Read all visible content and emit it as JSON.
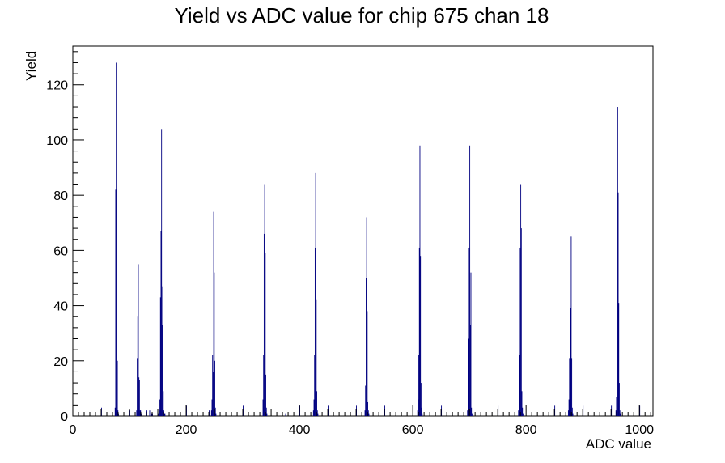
{
  "chart_data": {
    "type": "bar",
    "title": "Yield vs ADC value for chip 675 chan 18",
    "xlabel": "ADC value",
    "ylabel": "Yield",
    "xlim": [
      0,
      1024
    ],
    "ylim": [
      0,
      134
    ],
    "x_ticks": [
      0,
      200,
      400,
      600,
      800,
      1000
    ],
    "y_ticks": [
      0,
      20,
      40,
      60,
      80,
      100,
      120
    ],
    "grid": false,
    "legend": "none",
    "series_color": "#000080",
    "x": [
      50,
      74,
      75,
      76,
      77,
      78,
      79,
      80,
      100,
      112,
      113,
      114,
      115,
      116,
      117,
      118,
      119,
      120,
      130,
      135,
      138,
      140,
      150,
      152,
      153,
      154,
      155,
      156,
      157,
      158,
      159,
      160,
      161,
      162,
      200,
      240,
      244,
      245,
      246,
      247,
      248,
      249,
      250,
      251,
      252,
      300,
      335,
      336,
      337,
      338,
      339,
      340,
      341,
      342,
      375,
      400,
      424,
      425,
      426,
      427,
      428,
      429,
      430,
      431,
      432,
      450,
      500,
      515,
      516,
      517,
      518,
      519,
      520,
      521,
      522,
      550,
      600,
      608,
      609,
      610,
      611,
      612,
      613,
      614,
      615,
      616,
      650,
      696,
      697,
      698,
      699,
      700,
      701,
      702,
      703,
      704,
      750,
      786,
      787,
      788,
      789,
      790,
      791,
      792,
      793,
      794,
      850,
      874,
      875,
      876,
      877,
      878,
      879,
      880,
      881,
      882,
      900,
      950,
      958,
      959,
      960,
      961,
      962,
      963,
      964,
      965,
      966,
      1000
    ],
    "y": [
      3,
      3,
      82,
      128,
      124,
      20,
      2,
      1,
      2,
      2,
      21,
      36,
      55,
      14,
      13,
      2,
      2,
      1,
      2,
      2,
      1,
      1,
      1,
      2,
      6,
      43,
      67,
      104,
      33,
      47,
      9,
      2,
      1,
      1,
      4,
      2,
      2,
      6,
      22,
      16,
      74,
      52,
      20,
      3,
      1,
      4,
      6,
      22,
      66,
      84,
      59,
      15,
      3,
      1,
      1,
      4,
      2,
      6,
      22,
      61,
      88,
      42,
      9,
      2,
      1,
      4,
      4,
      2,
      11,
      50,
      72,
      38,
      5,
      2,
      1,
      4,
      4,
      2,
      6,
      22,
      61,
      98,
      58,
      12,
      3,
      1,
      4,
      2,
      6,
      28,
      61,
      98,
      33,
      52,
      3,
      1,
      4,
      2,
      6,
      22,
      61,
      84,
      68,
      9,
      3,
      1,
      4,
      2,
      6,
      21,
      113,
      39,
      65,
      21,
      3,
      1,
      4,
      4,
      2,
      7,
      48,
      112,
      81,
      41,
      12,
      2,
      1,
      4
    ]
  }
}
